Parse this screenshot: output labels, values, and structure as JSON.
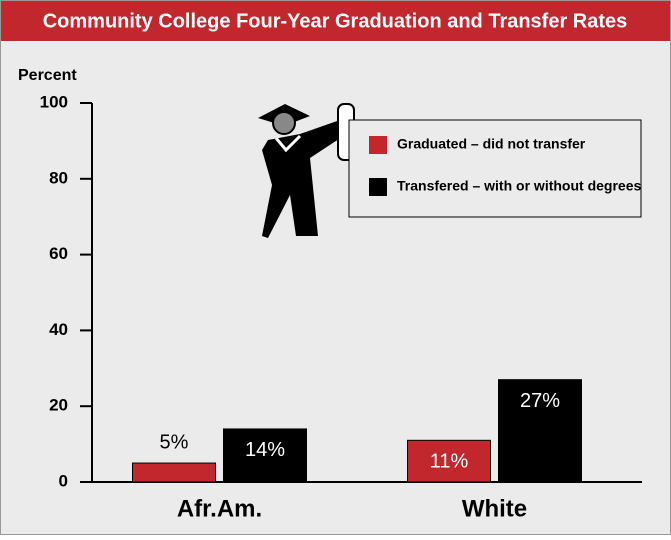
{
  "chart_data": {
    "type": "bar",
    "title": "Community College Four-Year Graduation and Transfer Rates",
    "y_label": "Percent",
    "categories": [
      "Afr.Am.",
      "White"
    ],
    "series": [
      {
        "name": "Graduated – did not transfer",
        "color": "#c1272d",
        "values": [
          5,
          11
        ],
        "value_labels": [
          "5%",
          "11%"
        ]
      },
      {
        "name": "Transfered – with or without degrees",
        "color": "#000000",
        "values": [
          14,
          27
        ],
        "value_labels": [
          "14%",
          "27%"
        ]
      }
    ],
    "ylim": [
      0,
      100
    ],
    "yticks": [
      0,
      20,
      40,
      60,
      80,
      100
    ],
    "legend": "upper right"
  }
}
